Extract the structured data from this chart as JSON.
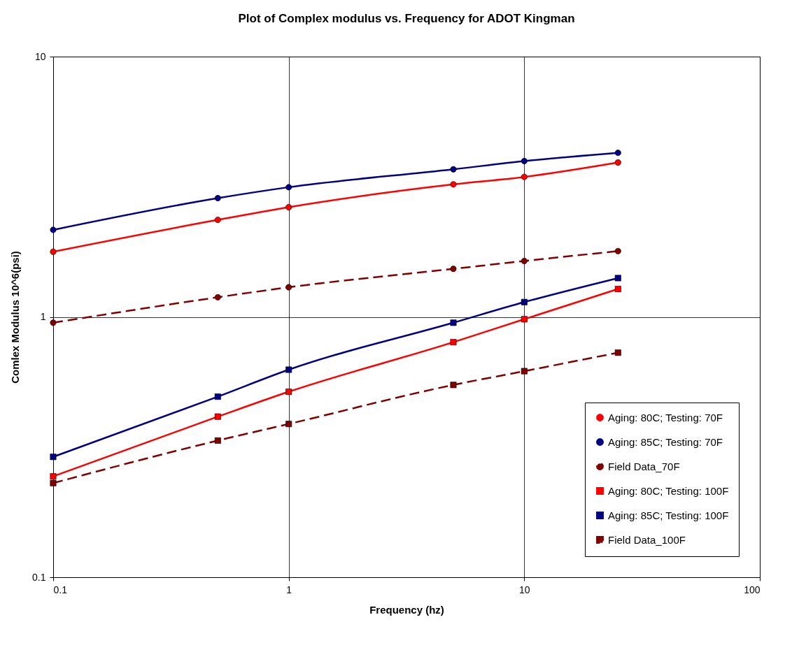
{
  "chart_data": {
    "type": "line",
    "title": "Plot of Complex modulus vs. Frequency for ADOT Kingman",
    "xlabel": "Frequency (hz)",
    "ylabel": "Comlex Modulus 10^6(psi)",
    "log": "xy",
    "grid": true,
    "legend": "bottom right",
    "x": [
      0.1,
      0.5,
      1,
      5,
      10,
      25
    ],
    "xlim": [
      0.1,
      100
    ],
    "xticks": [
      0.1,
      1,
      10,
      100
    ],
    "ylim": [
      0.1,
      10
    ],
    "yticks": [
      0.1,
      1,
      10
    ],
    "series": [
      {
        "name": "Aging: 80C; Testing: 70F",
        "color": "#ff0000",
        "marker": "circle",
        "line_style": "solid",
        "values": [
          1.78,
          2.36,
          2.64,
          3.23,
          3.45,
          3.92
        ]
      },
      {
        "name": "Aging: 85C; Testing: 70F",
        "color": "#000080",
        "marker": "circle",
        "line_style": "solid",
        "values": [
          2.16,
          2.86,
          3.15,
          3.69,
          3.97,
          4.27
        ]
      },
      {
        "name": "Field Data_70F",
        "color": "#800000",
        "marker": "circle",
        "line_style": "dashed",
        "values": [
          0.95,
          1.19,
          1.3,
          1.53,
          1.64,
          1.79
        ]
      },
      {
        "name": "Aging: 80C; Testing: 100F",
        "color": "#ff0000",
        "marker": "square",
        "line_style": "solid",
        "values": [
          0.244,
          0.414,
          0.516,
          0.8,
          0.98,
          1.28
        ]
      },
      {
        "name": "Aging: 85C; Testing: 100F",
        "color": "#000080",
        "marker": "square",
        "line_style": "solid",
        "values": [
          0.29,
          0.494,
          0.627,
          0.95,
          1.14,
          1.41
        ]
      },
      {
        "name": "Field Data_100F",
        "color": "#800000",
        "marker": "square",
        "line_style": "dashed",
        "values": [
          0.23,
          0.335,
          0.388,
          0.548,
          0.619,
          0.729
        ]
      }
    ]
  }
}
